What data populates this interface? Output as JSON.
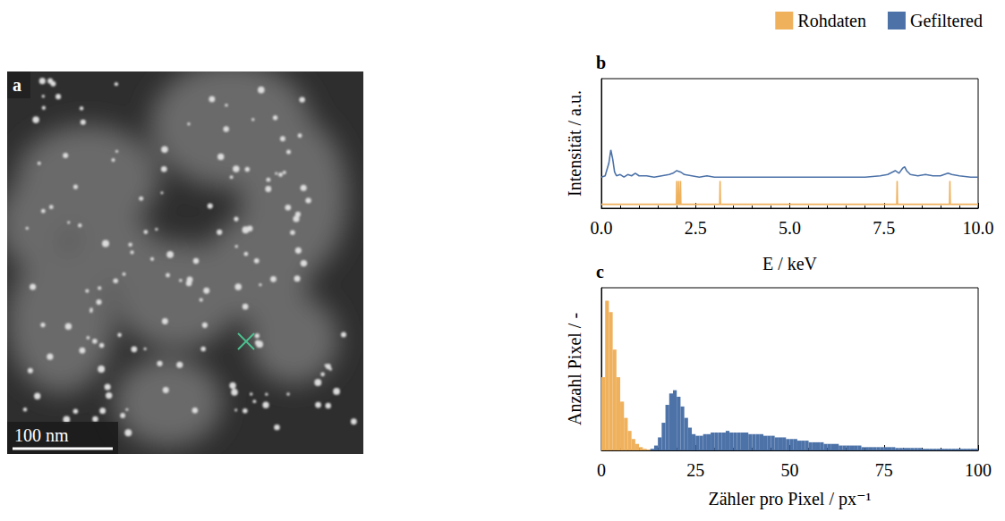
{
  "image_panel": {
    "label": "a",
    "scale_bar": "100 nm"
  },
  "chart_data": [
    {
      "type": "line",
      "label": "b",
      "x_label": "E / keV",
      "y_label": "Intensität / a.u.",
      "xlim": [
        0,
        10
      ],
      "xticks": [
        {
          "value": 0,
          "label": "0.0"
        },
        {
          "value": 2.5,
          "label": "2.5"
        },
        {
          "value": 5,
          "label": "5.0"
        },
        {
          "value": 7.5,
          "label": "7.5"
        },
        {
          "value": 10,
          "label": "10.0"
        }
      ],
      "ylim": [
        0,
        1
      ],
      "tick_labels": "x",
      "grid": false,
      "legend": "top right",
      "series": [
        {
          "name": "Rohdaten",
          "color": "#efb15c",
          "x": [
            0,
            1.99,
            2.0,
            2.01,
            2.04,
            2.05,
            2.06,
            2.09,
            2.1,
            2.11,
            3.14,
            3.15,
            3.16,
            7.84,
            7.85,
            7.86,
            9.24,
            9.25,
            9.26,
            10
          ],
          "values": [
            0.03,
            0.03,
            0.21,
            0.03,
            0.03,
            0.21,
            0.03,
            0.03,
            0.21,
            0.03,
            0.03,
            0.21,
            0.03,
            0.03,
            0.21,
            0.03,
            0.03,
            0.21,
            0.03,
            0.03
          ]
        },
        {
          "name": "Gefiltered",
          "color": "#4c72a8",
          "x": [
            0,
            0.1,
            0.2,
            0.25,
            0.3,
            0.35,
            0.4,
            0.5,
            0.6,
            0.7,
            0.8,
            0.9,
            1.0,
            1.2,
            1.4,
            1.6,
            1.8,
            1.9,
            2.0,
            2.1,
            2.2,
            2.4,
            2.6,
            2.8,
            3.0,
            3.5,
            4.0,
            4.5,
            5.0,
            5.5,
            6.0,
            6.5,
            7.0,
            7.4,
            7.6,
            7.8,
            7.9,
            8.0,
            8.05,
            8.1,
            8.2,
            8.4,
            8.6,
            8.8,
            9.0,
            9.2,
            9.3,
            9.5,
            9.8,
            10
          ],
          "values": [
            0.24,
            0.25,
            0.35,
            0.45,
            0.38,
            0.28,
            0.25,
            0.26,
            0.24,
            0.26,
            0.25,
            0.27,
            0.25,
            0.25,
            0.24,
            0.25,
            0.26,
            0.27,
            0.29,
            0.28,
            0.26,
            0.25,
            0.24,
            0.25,
            0.24,
            0.24,
            0.24,
            0.24,
            0.24,
            0.24,
            0.24,
            0.24,
            0.24,
            0.25,
            0.26,
            0.29,
            0.27,
            0.31,
            0.32,
            0.29,
            0.26,
            0.25,
            0.26,
            0.25,
            0.25,
            0.27,
            0.26,
            0.25,
            0.24,
            0.24
          ]
        }
      ]
    },
    {
      "type": "histogram",
      "label": "c",
      "x_label": "Zähler pro Pixel / px⁻¹",
      "y_label": "Anzahl Pixel / -",
      "xlim": [
        0,
        100
      ],
      "xticks": [
        0,
        25,
        50,
        75,
        100
      ],
      "ylim": [
        0,
        100
      ],
      "tick_labels": "x",
      "grid": false,
      "series": [
        {
          "name": "Rohdaten",
          "color": "#efb15c",
          "bins": [
            0,
            1,
            2,
            3,
            4,
            5,
            6,
            7,
            8,
            9,
            10,
            11,
            12,
            13
          ],
          "values": [
            45,
            92,
            85,
            62,
            45,
            30,
            20,
            12,
            7,
            4,
            2,
            1,
            0.5
          ]
        },
        {
          "name": "Gefiltered",
          "color": "#4c72a8",
          "bins": [
            13,
            14,
            15,
            16,
            17,
            18,
            19,
            20,
            21,
            22,
            23,
            24,
            25,
            26,
            27,
            28,
            29,
            30,
            31,
            32,
            33,
            34,
            35,
            36,
            37,
            38,
            39,
            40,
            41,
            42,
            43,
            44,
            45,
            46,
            47,
            48,
            49,
            50,
            51,
            52,
            53,
            54,
            55,
            56,
            57,
            58,
            59,
            60,
            61,
            62,
            63,
            64,
            65,
            66,
            67,
            68,
            69,
            70,
            71,
            72,
            73,
            74,
            75,
            76,
            77,
            78,
            79,
            80,
            81,
            82,
            83,
            84,
            85,
            86,
            87,
            88,
            89,
            90,
            91,
            92,
            93,
            94,
            95,
            96,
            97,
            98,
            99,
            100
          ],
          "values": [
            1,
            3,
            8,
            17,
            28,
            35,
            37,
            33,
            27,
            20,
            14,
            10,
            9,
            9,
            10,
            10,
            11,
            11,
            11,
            11,
            12,
            11,
            11,
            11,
            11,
            11,
            10,
            10,
            10,
            10,
            9,
            9,
            9,
            8,
            8,
            8,
            7,
            7,
            7,
            6,
            6,
            6,
            5,
            5,
            5,
            5,
            4,
            4,
            4,
            4,
            3,
            3,
            3,
            3,
            3,
            3,
            2,
            2,
            2,
            2,
            2,
            2,
            2,
            2,
            2,
            1.5,
            1.5,
            1.5,
            1.5,
            1.5,
            1.5,
            1.5,
            1,
            1,
            1,
            1,
            1,
            1,
            1,
            1,
            1,
            1,
            1,
            1,
            1,
            1,
            1
          ]
        }
      ]
    }
  ]
}
